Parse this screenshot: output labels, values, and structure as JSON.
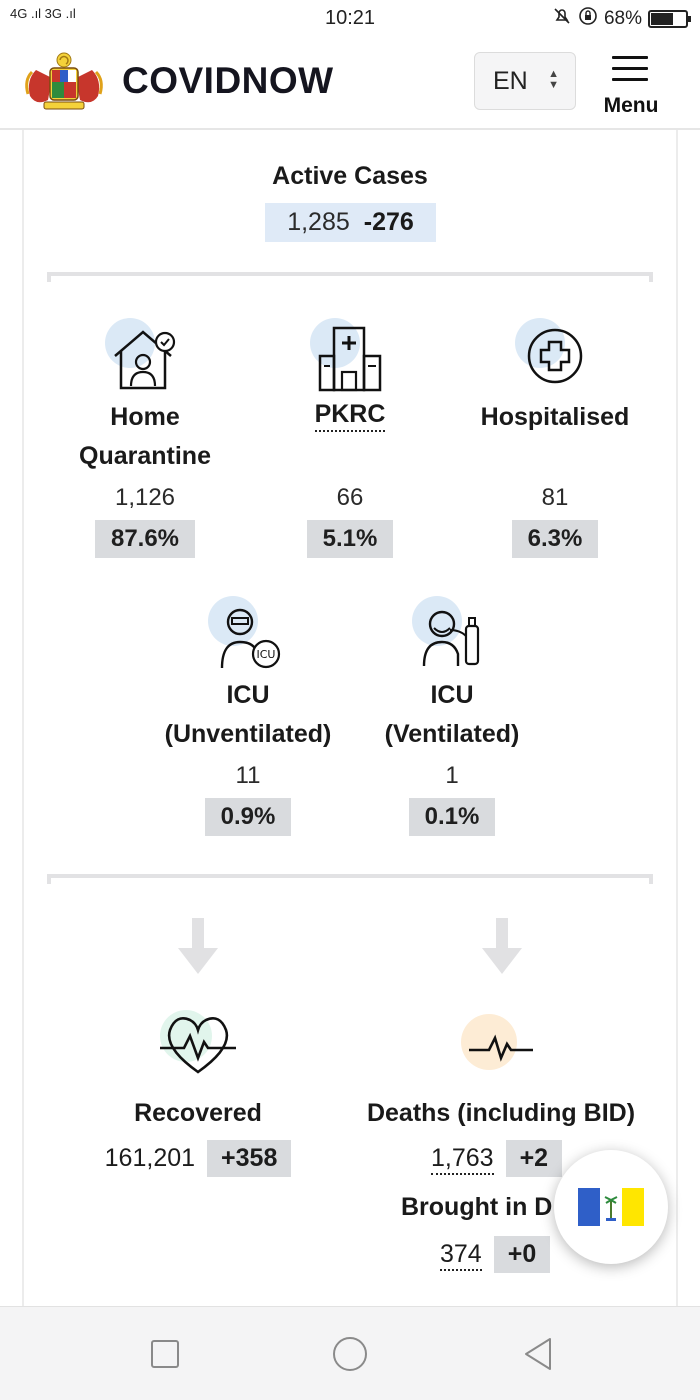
{
  "status_bar": {
    "signal_text": "4G .ıl 3G .ıl",
    "time": "10:21",
    "battery_percent": "68%",
    "battery_level": 0.68
  },
  "header": {
    "brand": "COVIDNOW",
    "language": "EN",
    "menu_label": "Menu"
  },
  "active_cases": {
    "title": "Active Cases",
    "value": "1,285",
    "delta": "-276"
  },
  "breakdown": [
    {
      "label": "Home",
      "label2": "Quarantine",
      "value": "1,126",
      "percent": "87.6%",
      "icon": "home-quarantine-icon"
    },
    {
      "label": "PKRC",
      "value": "66",
      "percent": "5.1%",
      "icon": "pkrc-building-icon"
    },
    {
      "label": "Hospitalised",
      "value": "81",
      "percent": "6.3%",
      "icon": "hospital-cross-icon"
    },
    {
      "label": "ICU",
      "label2": "(Unventilated)",
      "value": "11",
      "percent": "0.9%",
      "icon": "icu-doctor-icon"
    },
    {
      "label": "ICU",
      "label2": "(Ventilated)",
      "value": "1",
      "percent": "0.1%",
      "icon": "ventilator-patient-icon"
    }
  ],
  "outcomes": {
    "recovered": {
      "label": "Recovered",
      "value": "161,201",
      "delta": "+358"
    },
    "deaths": {
      "label": "Deaths (including BID)",
      "value": "1,763",
      "delta": "+2"
    },
    "bid": {
      "label": "Brought in D",
      "value": "374",
      "delta": "+0"
    }
  },
  "colors": {
    "active_box": "#dfeaf7",
    "pct_badge": "#d9dbde",
    "icon_circle_blue": "#dbe9f6",
    "icon_circle_green": "#e1f5ec",
    "icon_circle_orange": "#fdecd5",
    "flag_blue": "#2f5fc8",
    "flag_yellow": "#ffe600"
  }
}
